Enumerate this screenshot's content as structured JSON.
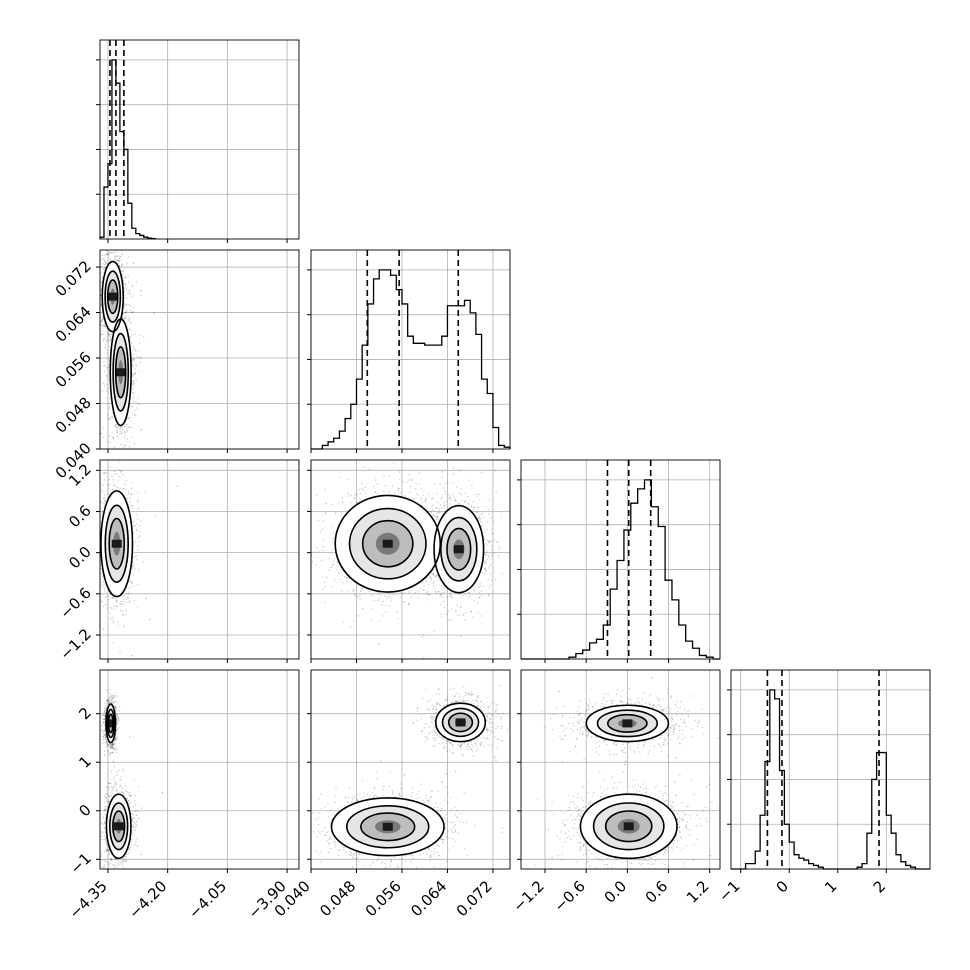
{
  "chart_data": {
    "type": "corner",
    "params": [
      {
        "ticks": [
          -4.35,
          -4.2,
          -4.05,
          -3.9
        ],
        "tick_labels": [
          "−4.35",
          "−4.20",
          "−4.05",
          "−3.90"
        ],
        "range": [
          -4.37,
          -3.87
        ],
        "quantiles": [
          -4.345,
          -4.33,
          -4.31
        ]
      },
      {
        "ticks": [
          0.04,
          0.048,
          0.056,
          0.064,
          0.072
        ],
        "tick_labels": [
          "0.040",
          "0.048",
          "0.056",
          "0.064",
          "0.072"
        ],
        "range": [
          0.04,
          0.075
        ],
        "quantiles": [
          0.0499,
          0.0555,
          0.0659
        ]
      },
      {
        "ticks": [
          -1.2,
          -0.6,
          0.0,
          0.6,
          1.2
        ],
        "tick_labels": [
          "−1.2",
          "−0.6",
          "0.0",
          "0.6",
          "1.2"
        ],
        "range": [
          -1.55,
          1.35
        ],
        "quantiles": [
          -0.29,
          0.02,
          0.34
        ]
      },
      {
        "ticks": [
          -1,
          0,
          1,
          2
        ],
        "tick_labels": [
          "−1",
          "0",
          "1",
          "2"
        ],
        "range": [
          -1.2,
          2.9
        ],
        "quantiles": [
          -0.45,
          -0.15,
          1.85
        ]
      }
    ],
    "histograms": [
      {
        "edges": [
          -4.37,
          -4.36,
          -4.35,
          -4.34,
          -4.33,
          -4.32,
          -4.31,
          -4.3,
          -4.29,
          -4.28,
          -4.27,
          -4.26,
          -4.25,
          -4.24,
          -4.23
        ],
        "counts": [
          0.01,
          0.29,
          0.42,
          1.0,
          0.87,
          0.6,
          0.5,
          0.2,
          0.06,
          0.03,
          0.02,
          0.01,
          0.005,
          0.002
        ]
      },
      {
        "edges": [
          0.04,
          0.041,
          0.042,
          0.043,
          0.044,
          0.045,
          0.046,
          0.047,
          0.048,
          0.049,
          0.05,
          0.051,
          0.052,
          0.053,
          0.054,
          0.055,
          0.056,
          0.057,
          0.058,
          0.059,
          0.06,
          0.061,
          0.062,
          0.063,
          0.064,
          0.065,
          0.066,
          0.067,
          0.068,
          0.069,
          0.07,
          0.071,
          0.072,
          0.073,
          0.074,
          0.075
        ],
        "counts": [
          0.0,
          0.0,
          0.02,
          0.04,
          0.06,
          0.1,
          0.17,
          0.25,
          0.39,
          0.58,
          0.81,
          0.95,
          1.0,
          1.0,
          0.97,
          0.89,
          0.81,
          0.63,
          0.59,
          0.59,
          0.58,
          0.58,
          0.58,
          0.63,
          0.8,
          0.8,
          0.8,
          0.83,
          0.76,
          0.64,
          0.39,
          0.31,
          0.12,
          0.02,
          0.01
        ]
      },
      {
        "edges": [
          -1.55,
          -1.45,
          -1.35,
          -1.25,
          -1.15,
          -1.05,
          -0.95,
          -0.85,
          -0.75,
          -0.65,
          -0.55,
          -0.45,
          -0.35,
          -0.25,
          -0.15,
          -0.05,
          0.05,
          0.15,
          0.25,
          0.35,
          0.45,
          0.55,
          0.65,
          0.75,
          0.85,
          0.95,
          1.05,
          1.15,
          1.25,
          1.35
        ],
        "counts": [
          0,
          0,
          0,
          0,
          0,
          0,
          0,
          0.01,
          0.03,
          0.05,
          0.09,
          0.11,
          0.19,
          0.39,
          0.55,
          0.72,
          0.87,
          0.95,
          1.0,
          0.85,
          0.74,
          0.44,
          0.33,
          0.19,
          0.1,
          0.06,
          0.02,
          0.01,
          0
        ]
      },
      {
        "edges": [
          -1.2,
          -1.1,
          -1.0,
          -0.9,
          -0.8,
          -0.7,
          -0.6,
          -0.5,
          -0.4,
          -0.3,
          -0.2,
          -0.1,
          0.0,
          0.1,
          0.2,
          0.3,
          0.4,
          0.5,
          0.6,
          0.7,
          0.8,
          0.9,
          1.0,
          1.1,
          1.2,
          1.3,
          1.4,
          1.5,
          1.6,
          1.7,
          1.8,
          1.9,
          2.0,
          2.1,
          2.2,
          2.3,
          2.4,
          2.5,
          2.6,
          2.7,
          2.8,
          2.9
        ],
        "counts": [
          0,
          0,
          0,
          0.03,
          0.03,
          0.1,
          0.3,
          0.6,
          1.0,
          0.95,
          0.55,
          0.25,
          0.15,
          0.08,
          0.06,
          0.05,
          0.03,
          0.02,
          0.01,
          0,
          0,
          0,
          0,
          0,
          0,
          0,
          0.01,
          0.03,
          0.2,
          0.5,
          0.65,
          0.65,
          0.3,
          0.2,
          0.08,
          0.04,
          0.02,
          0.01,
          0,
          0,
          0
        ]
      }
    ],
    "blobs": {
      "1_0": [
        {
          "cx": -4.338,
          "cy": 0.0668,
          "sx": 0.012,
          "sy": 0.0028,
          "w": 1.0
        },
        {
          "cx": -4.318,
          "cy": 0.0535,
          "sx": 0.014,
          "sy": 0.005,
          "w": 0.7
        }
      ],
      "2_0": [
        {
          "cx": -4.328,
          "cy": 0.13,
          "sx": 0.018,
          "sy": 0.35,
          "w": 1.0
        }
      ],
      "2_1": [
        {
          "cx": 0.0535,
          "cy": 0.13,
          "sx": 0.0042,
          "sy": 0.32,
          "w": 1.0
        },
        {
          "cx": 0.066,
          "cy": 0.05,
          "sx": 0.0022,
          "sy": 0.32,
          "w": 0.75
        }
      ],
      "3_0": [
        {
          "cx": -4.343,
          "cy": 1.8,
          "sx": 0.006,
          "sy": 0.2,
          "w": 0.75
        },
        {
          "cx": -4.323,
          "cy": -0.32,
          "sx": 0.014,
          "sy": 0.3,
          "w": 1.0
        }
      ],
      "3_1": [
        {
          "cx": 0.0663,
          "cy": 1.82,
          "sx": 0.0022,
          "sy": 0.2,
          "w": 0.75
        },
        {
          "cx": 0.0535,
          "cy": -0.33,
          "sx": 0.0045,
          "sy": 0.27,
          "w": 1.0
        }
      ],
      "3_2": [
        {
          "cx": 0.0,
          "cy": 1.8,
          "sx": 0.32,
          "sy": 0.2,
          "w": 0.7
        },
        {
          "cx": 0.02,
          "cy": -0.32,
          "sx": 0.32,
          "sy": 0.3,
          "w": 1.0
        }
      ]
    },
    "scatter_range": {
      "x": [
        0.0,
        1.0
      ],
      "y": [
        0.0,
        1.0
      ]
    },
    "grid": true
  }
}
